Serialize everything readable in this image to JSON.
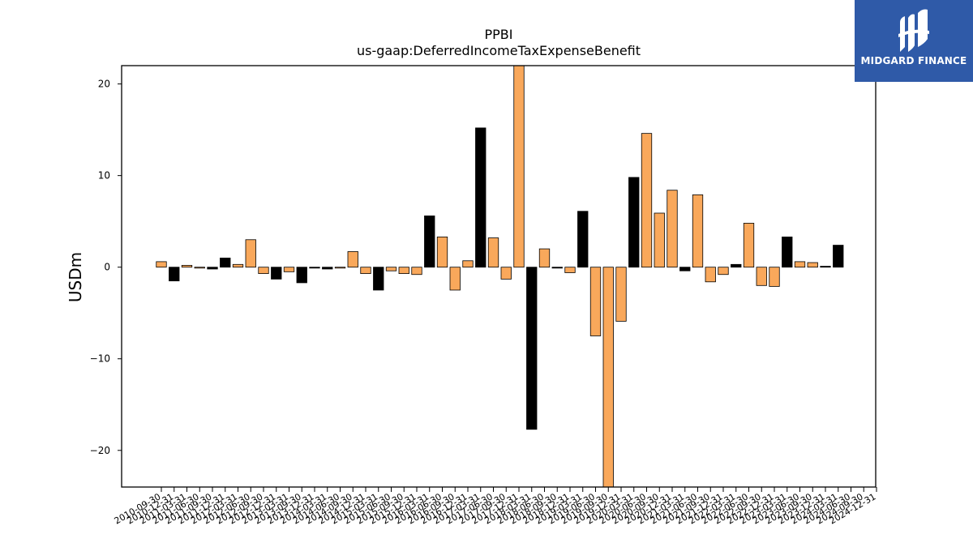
{
  "chart_data": {
    "type": "bar",
    "title": "PPBI",
    "subtitle": "us-gaap:DeferredIncomeTaxExpenseBenefit",
    "xlabel": "",
    "ylabel": "USDm",
    "ylim": [
      -24,
      22
    ],
    "yticks": [
      -20,
      -10,
      0,
      10,
      20
    ],
    "ytick_labels": [
      "−20",
      "−10",
      "0",
      "10",
      "20"
    ],
    "grid": false,
    "colors": {
      "quarterly": "#f9a85b",
      "annual": "#000000",
      "edge": "#000000"
    },
    "categories": [
      "2010-09-30",
      "2010-12-31",
      "2011-03-31",
      "2011-06-30",
      "2011-09-30",
      "2011-12-31",
      "2012-03-31",
      "2012-06-30",
      "2012-09-30",
      "2012-12-31",
      "2013-03-31",
      "2013-09-30",
      "2013-12-31",
      "2014-03-31",
      "2014-06-30",
      "2014-09-30",
      "2014-12-31",
      "2015-03-31",
      "2015-06-30",
      "2015-09-30",
      "2015-12-31",
      "2016-03-31",
      "2016-06-30",
      "2016-09-30",
      "2016-12-31",
      "2017-03-31",
      "2017-06-30",
      "2017-09-30",
      "2017-12-31",
      "2018-03-31",
      "2018-06-30",
      "2018-09-30",
      "2018-12-31",
      "2019-03-31",
      "2019-06-30",
      "2019-09-30",
      "2019-12-31",
      "2020-03-31",
      "2020-06-30",
      "2020-09-30",
      "2020-12-31",
      "2021-03-31",
      "2021-06-30",
      "2021-09-30",
      "2021-12-31",
      "2022-03-31",
      "2022-06-30",
      "2022-09-30",
      "2022-12-31",
      "2023-03-31",
      "2023-06-30",
      "2023-09-30",
      "2023-12-31",
      "2024-03-31",
      "2024-06-30",
      "2024-09-30",
      "2024-12-31"
    ],
    "values": [
      0.6,
      -1.5,
      0.2,
      -0.1,
      -0.2,
      1.0,
      0.3,
      3.0,
      -0.7,
      -1.3,
      -0.5,
      -1.7,
      -0.1,
      -0.2,
      -0.1,
      1.7,
      -0.7,
      -2.5,
      -0.4,
      -0.7,
      -0.8,
      5.6,
      3.3,
      -2.5,
      0.7,
      15.2,
      3.2,
      -1.3,
      22.0,
      -17.7,
      2.0,
      -0.1,
      -0.6,
      6.1,
      -7.5,
      -24.0,
      -5.9,
      9.8,
      14.6,
      5.9,
      8.4,
      -0.4,
      7.9,
      -1.6,
      -0.8,
      0.3,
      4.8,
      -2.0,
      -2.1,
      3.3,
      0.6,
      0.5,
      0.1,
      2.4,
      0,
      0,
      0
    ],
    "is_annual": [
      false,
      true,
      false,
      false,
      true,
      true,
      false,
      false,
      false,
      true,
      false,
      true,
      true,
      true,
      false,
      false,
      false,
      true,
      false,
      false,
      false,
      true,
      false,
      false,
      false,
      true,
      false,
      false,
      false,
      true,
      false,
      true,
      false,
      true,
      false,
      false,
      false,
      true,
      false,
      false,
      false,
      true,
      false,
      false,
      false,
      true,
      false,
      false,
      false,
      true,
      false,
      false,
      true,
      true,
      false,
      false,
      false
    ],
    "visible_count": 54
  },
  "watermark": {
    "brand": "MIDGARD FINANCE",
    "background": "#2f5aa8"
  }
}
